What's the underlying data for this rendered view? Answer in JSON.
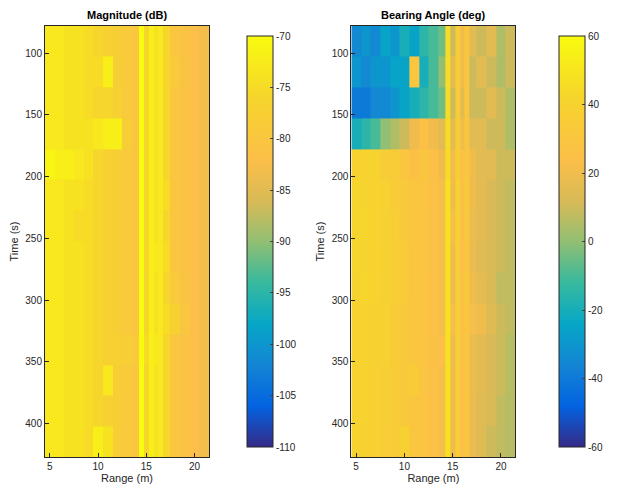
{
  "chart_data": [
    {
      "type": "heatmap",
      "title": "Magnitude (dB)",
      "x_label": "Range (m)",
      "y_label": "Time (s)",
      "x": [
        5,
        6,
        7,
        8,
        9,
        10,
        11,
        12,
        13,
        14,
        14.5,
        15,
        15.5,
        16,
        16.5,
        17,
        18,
        19,
        20,
        21
      ],
      "y": [
        90,
        115,
        140,
        165,
        190,
        215,
        240,
        265,
        290,
        315,
        340,
        365,
        390,
        415
      ],
      "z": [
        [
          -73,
          -73,
          -74,
          -74,
          -75,
          -76,
          -77,
          -78,
          -79,
          -80,
          -70,
          -76,
          -72,
          -74,
          -73,
          -76,
          -80,
          -81,
          -82,
          -83
        ],
        [
          -73,
          -73,
          -74,
          -74,
          -75,
          -75,
          -72,
          -78,
          -79,
          -80,
          -70,
          -76,
          -72,
          -74,
          -73,
          -76,
          -79,
          -81,
          -82,
          -83
        ],
        [
          -73,
          -73,
          -74,
          -74,
          -75,
          -76,
          -76,
          -77,
          -79,
          -80,
          -70,
          -76,
          -72,
          -74,
          -73,
          -76,
          -80,
          -81,
          -82,
          -83
        ],
        [
          -73,
          -73,
          -74,
          -74,
          -74,
          -73,
          -72,
          -72,
          -78,
          -80,
          -70,
          -76,
          -72,
          -74,
          -73,
          -76,
          -80,
          -81,
          -82,
          -83
        ],
        [
          -71,
          -72,
          -72,
          -73,
          -74,
          -76,
          -77,
          -78,
          -79,
          -80,
          -70,
          -76,
          -72,
          -74,
          -73,
          -76,
          -80,
          -81,
          -82,
          -83
        ],
        [
          -73,
          -73,
          -74,
          -74,
          -75,
          -76,
          -77,
          -78,
          -79,
          -80,
          -70,
          -76,
          -72,
          -74,
          -73,
          -75,
          -80,
          -81,
          -82,
          -83
        ],
        [
          -73,
          -73,
          -74,
          -75,
          -75,
          -76,
          -77,
          -78,
          -79,
          -80,
          -70,
          -76,
          -72,
          -74,
          -73,
          -76,
          -80,
          -81,
          -82,
          -83
        ],
        [
          -73,
          -73,
          -74,
          -74,
          -75,
          -76,
          -77,
          -78,
          -79,
          -80,
          -70,
          -76,
          -72,
          -73,
          -73,
          -75,
          -80,
          -81,
          -82,
          -83
        ],
        [
          -73,
          -73,
          -74,
          -74,
          -75,
          -76,
          -77,
          -78,
          -79,
          -80,
          -70,
          -76,
          -72,
          -74,
          -73,
          -76,
          -79,
          -81,
          -82,
          -83
        ],
        [
          -73,
          -73,
          -74,
          -74,
          -75,
          -76,
          -77,
          -78,
          -79,
          -80,
          -70,
          -76,
          -72,
          -74,
          -73,
          -75,
          -77,
          -80,
          -82,
          -83
        ],
        [
          -73,
          -73,
          -74,
          -74,
          -75,
          -76,
          -77,
          -77,
          -78,
          -79,
          -70,
          -75,
          -72,
          -73,
          -73,
          -76,
          -80,
          -81,
          -82,
          -83
        ],
        [
          -73,
          -73,
          -74,
          -74,
          -75,
          -76,
          -73,
          -78,
          -79,
          -80,
          -70,
          -76,
          -72,
          -74,
          -73,
          -76,
          -80,
          -81,
          -82,
          -83
        ],
        [
          -73,
          -73,
          -74,
          -74,
          -75,
          -76,
          -77,
          -78,
          -79,
          -80,
          -70,
          -76,
          -72,
          -74,
          -73,
          -76,
          -80,
          -81,
          -82,
          -83
        ],
        [
          -73,
          -73,
          -74,
          -74,
          -75,
          -72,
          -74,
          -78,
          -79,
          -80,
          -70,
          -76,
          -72,
          -74,
          -73,
          -76,
          -80,
          -81,
          -82,
          -83
        ]
      ],
      "xlim": [
        4.5,
        21.5
      ],
      "xticks": [
        5,
        10,
        15,
        20
      ],
      "ylim": [
        427,
        78
      ],
      "yticks": [
        100,
        150,
        200,
        250,
        300,
        350,
        400
      ],
      "colorbar_range": [
        -110,
        -70
      ],
      "colorbar_ticks": [
        -110,
        -105,
        -100,
        -95,
        -90,
        -85,
        -80,
        -75,
        -70
      ]
    },
    {
      "type": "heatmap",
      "title": "Bearing Angle (deg)",
      "x_label": "Range (m)",
      "y_label": "Time (s)",
      "x": [
        5,
        6,
        7,
        8,
        9,
        10,
        11,
        12,
        13,
        14,
        14.5,
        15,
        15.5,
        16,
        16.5,
        17,
        18,
        19,
        20,
        21
      ],
      "y": [
        90,
        115,
        140,
        165,
        190,
        215,
        240,
        265,
        290,
        315,
        340,
        365,
        390,
        415
      ],
      "z": [
        [
          -35,
          -30,
          -35,
          -25,
          -30,
          -20,
          -25,
          -15,
          -10,
          -5,
          45,
          10,
          35,
          20,
          30,
          15,
          10,
          15,
          5,
          10
        ],
        [
          -30,
          -35,
          -30,
          -30,
          -25,
          -25,
          30,
          -20,
          -10,
          0,
          45,
          15,
          35,
          20,
          30,
          10,
          15,
          10,
          5,
          10
        ],
        [
          -40,
          -40,
          -35,
          -35,
          -30,
          -25,
          -20,
          -15,
          -10,
          -5,
          45,
          10,
          35,
          15,
          30,
          10,
          10,
          15,
          10,
          5
        ],
        [
          -20,
          -15,
          -10,
          0,
          5,
          10,
          20,
          25,
          20,
          15,
          45,
          15,
          35,
          20,
          30,
          15,
          15,
          10,
          10,
          5
        ],
        [
          40,
          40,
          40,
          35,
          35,
          30,
          25,
          30,
          25,
          20,
          45,
          20,
          35,
          25,
          30,
          20,
          15,
          15,
          10,
          10
        ],
        [
          42,
          40,
          40,
          38,
          35,
          32,
          30,
          28,
          25,
          22,
          48,
          20,
          38,
          25,
          32,
          20,
          15,
          12,
          10,
          8
        ],
        [
          42,
          42,
          40,
          38,
          36,
          32,
          30,
          28,
          26,
          22,
          48,
          22,
          38,
          24,
          32,
          18,
          15,
          12,
          10,
          8
        ],
        [
          42,
          40,
          40,
          38,
          36,
          34,
          30,
          28,
          26,
          22,
          48,
          20,
          36,
          24,
          30,
          18,
          14,
          12,
          10,
          8
        ],
        [
          40,
          42,
          40,
          38,
          36,
          34,
          30,
          28,
          25,
          22,
          48,
          20,
          36,
          25,
          32,
          20,
          16,
          12,
          8,
          8
        ],
        [
          40,
          40,
          38,
          38,
          35,
          32,
          30,
          28,
          25,
          22,
          48,
          22,
          36,
          25,
          30,
          22,
          20,
          14,
          10,
          8
        ],
        [
          40,
          40,
          38,
          38,
          35,
          32,
          30,
          28,
          26,
          24,
          48,
          20,
          36,
          25,
          30,
          18,
          15,
          12,
          10,
          6
        ],
        [
          40,
          40,
          38,
          36,
          35,
          32,
          35,
          28,
          25,
          22,
          48,
          20,
          36,
          24,
          30,
          18,
          15,
          12,
          10,
          6
        ],
        [
          40,
          40,
          38,
          36,
          35,
          32,
          30,
          28,
          25,
          22,
          48,
          20,
          36,
          24,
          30,
          18,
          14,
          12,
          8,
          6
        ],
        [
          40,
          38,
          38,
          36,
          35,
          38,
          30,
          28,
          25,
          22,
          48,
          20,
          36,
          24,
          30,
          18,
          14,
          10,
          8,
          6
        ]
      ],
      "xlim": [
        4.5,
        21.5
      ],
      "xticks": [
        5,
        10,
        15,
        20
      ],
      "ylim": [
        427,
        78
      ],
      "yticks": [
        100,
        150,
        200,
        250,
        300,
        350,
        400
      ],
      "colorbar_range": [
        -60,
        60
      ],
      "colorbar_ticks": [
        -60,
        -40,
        -20,
        0,
        20,
        40,
        60
      ]
    }
  ]
}
